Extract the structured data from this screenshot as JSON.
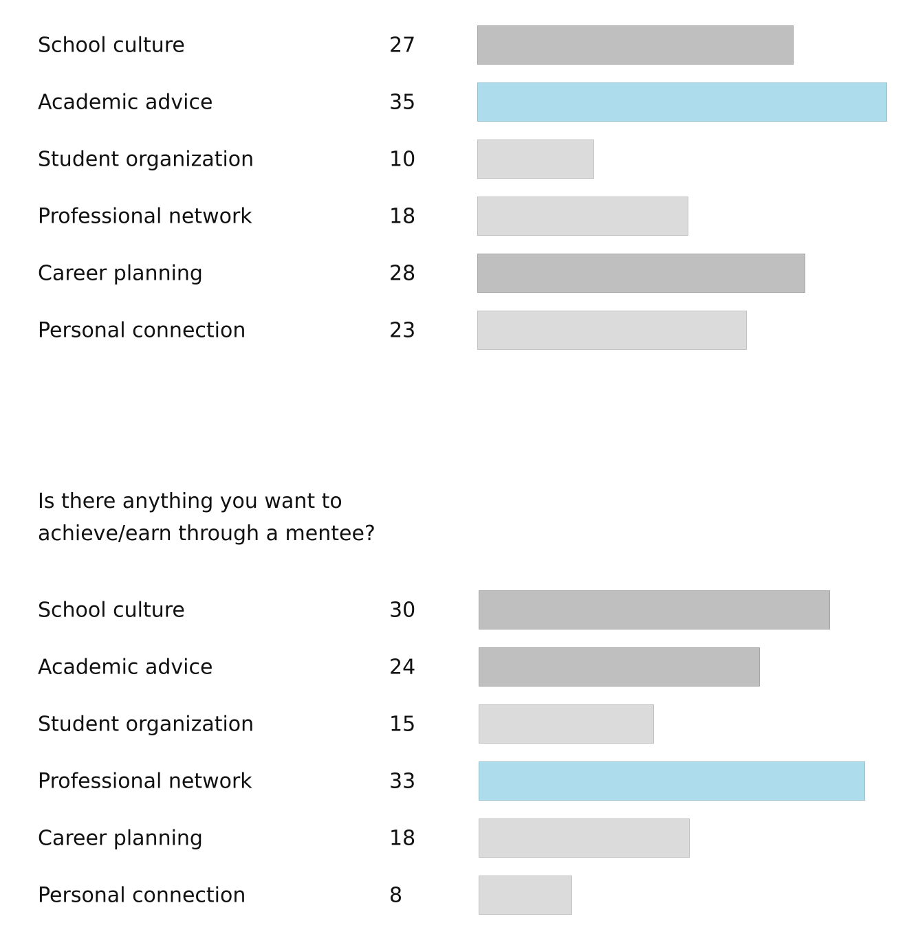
{
  "question": {
    "line1": "Is there anything you want to",
    "line2": "achieve/earn through a mentee?"
  },
  "colors": {
    "highlight": "#addcec",
    "dark": "#bfbfbf",
    "light": "#dbdbdb"
  },
  "chart_data": [
    {
      "type": "bar",
      "orientation": "horizontal",
      "title": "",
      "categories": [
        "School culture",
        "Academic advice",
        "Student organization",
        "Professional network",
        "Career planning",
        "Personal connection"
      ],
      "values": [
        27,
        35,
        10,
        18,
        28,
        23
      ],
      "bar_colors": [
        "dark",
        "highlight",
        "light",
        "light",
        "dark",
        "light"
      ],
      "xlim": [
        0,
        35
      ]
    },
    {
      "type": "bar",
      "orientation": "horizontal",
      "title": "Is there anything you want to achieve/earn through a mentee?",
      "categories": [
        "School culture",
        "Academic advice",
        "Student organization",
        "Professional network",
        "Career planning",
        "Personal connection"
      ],
      "values": [
        30,
        24,
        15,
        33,
        18,
        8
      ],
      "bar_colors": [
        "dark",
        "dark",
        "light",
        "highlight",
        "light",
        "light"
      ],
      "xlim": [
        0,
        35
      ]
    }
  ]
}
